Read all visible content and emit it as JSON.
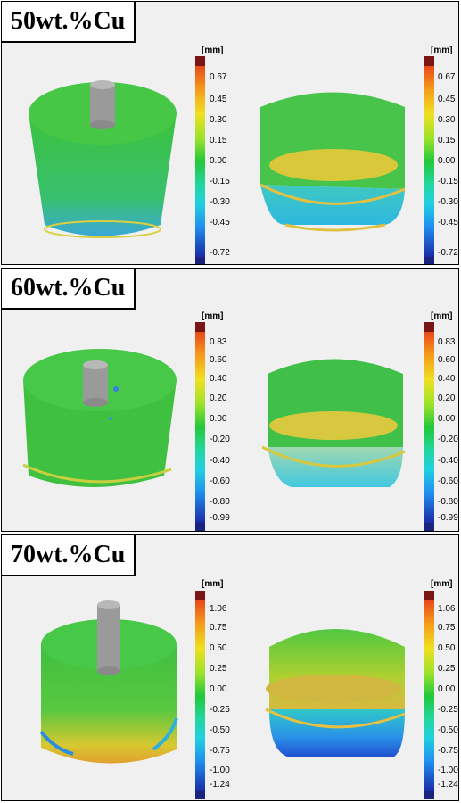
{
  "panels": [
    {
      "label": "50wt.%Cu",
      "unit": "[mm]",
      "ticks": [
        "0.67",
        "0.45",
        "0.30",
        "0.15",
        "0.00",
        "-0.15",
        "-0.30",
        "-0.45",
        "-0.72"
      ],
      "left_scan": "deviation map of cylinder with central boss",
      "right_scan": "deviation map of inverted cylindrical shell"
    },
    {
      "label": "60wt.%Cu",
      "unit": "[mm]",
      "ticks": [
        "0.83",
        "0.60",
        "0.40",
        "0.20",
        "0.00",
        "-0.20",
        "-0.40",
        "-0.60",
        "-0.80",
        "-0.99"
      ]
    },
    {
      "label": "70wt.%Cu",
      "unit": "[mm]",
      "ticks": [
        "1.06",
        "0.75",
        "0.50",
        "0.25",
        "0.00",
        "-0.25",
        "-0.50",
        "-0.75",
        "-1.00",
        "-1.24"
      ]
    }
  ],
  "colors": {
    "top_cap": "#7a1515",
    "bottom_cap": "#1a237e",
    "surface_green": "#3fbf3f",
    "gray_pin": "#9a9a9a"
  }
}
